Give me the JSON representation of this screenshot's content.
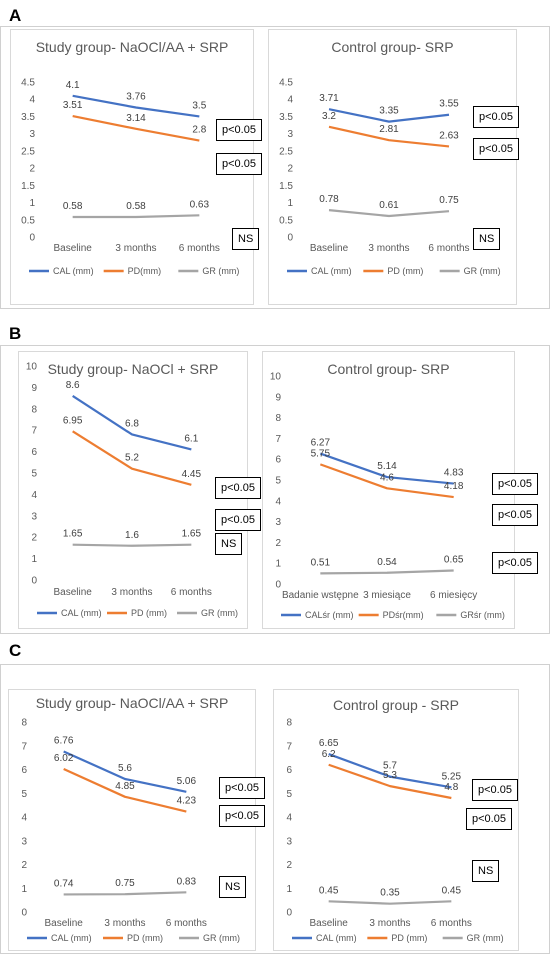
{
  "panels": [
    "A",
    "B",
    "C"
  ],
  "colors": {
    "cal": "#4472C4",
    "pd": "#ED7D31",
    "gr": "#A5A5A5"
  },
  "chart_data": [
    {
      "type": "line",
      "title": "Study group- NaOCl/AA + SRP",
      "categories": [
        "Baseline",
        "3 months",
        "6 months"
      ],
      "ylim": [
        0,
        4.5
      ],
      "yticks": [
        "0",
        "0.5",
        "1",
        "1.5",
        "2",
        "2.5",
        "3",
        "3.5",
        "4",
        "4.5"
      ],
      "series": [
        {
          "name": "CAL (mm)",
          "values": [
            4.1,
            3.76,
            3.5
          ],
          "labels": [
            "4.1",
            "3.76",
            "3.5"
          ]
        },
        {
          "name": "PD(mm)",
          "values": [
            3.51,
            3.14,
            2.8
          ],
          "labels": [
            "3.51",
            "3.14",
            "2.8"
          ]
        },
        {
          "name": "GR (mm)",
          "values": [
            0.58,
            0.58,
            0.63
          ],
          "labels": [
            "0.58",
            "0.58",
            "0.63"
          ]
        }
      ],
      "annotations": [
        "p<0.05",
        "p<0.05",
        "NS"
      ]
    },
    {
      "type": "line",
      "title": "Control group- SRP",
      "categories": [
        "Baseline",
        "3 months",
        "6 months"
      ],
      "ylim": [
        0,
        4.5
      ],
      "yticks": [
        "0",
        "0.5",
        "1",
        "1.5",
        "2",
        "2.5",
        "3",
        "3.5",
        "4",
        "4.5"
      ],
      "series": [
        {
          "name": "CAL (mm)",
          "values": [
            3.71,
            3.35,
            3.55
          ],
          "labels": [
            "3.71",
            "3.35",
            "3.55"
          ]
        },
        {
          "name": "PD (mm)",
          "values": [
            3.2,
            2.81,
            2.63
          ],
          "labels": [
            "3.2",
            "2.81",
            "2.63"
          ]
        },
        {
          "name": "GR (mm)",
          "values": [
            0.78,
            0.61,
            0.75
          ],
          "labels": [
            "0.78",
            "0.61",
            "0.75"
          ]
        }
      ],
      "annotations": [
        "p<0.05",
        "p<0.05",
        "NS"
      ]
    },
    {
      "type": "line",
      "title": "Study group- NaOCl + SRP",
      "categories": [
        "Baseline",
        "3 months",
        "6 months"
      ],
      "ylim": [
        0,
        10
      ],
      "yticks": [
        "0",
        "1",
        "2",
        "3",
        "4",
        "5",
        "6",
        "7",
        "8",
        "9",
        "10"
      ],
      "series": [
        {
          "name": "CAL (mm)",
          "values": [
            8.6,
            6.8,
            6.1
          ],
          "labels": [
            "8.6",
            "6.8",
            "6.1"
          ]
        },
        {
          "name": "PD (mm)",
          "values": [
            6.95,
            5.2,
            4.45
          ],
          "labels": [
            "6.95",
            "5.2",
            "4.45"
          ]
        },
        {
          "name": "GR (mm)",
          "values": [
            1.65,
            1.6,
            1.65
          ],
          "labels": [
            "1.65",
            "1.6",
            "1.65"
          ]
        }
      ],
      "annotations": [
        "p<0.05",
        "p<0.05",
        "NS"
      ]
    },
    {
      "type": "line",
      "title": "Control group- SRP",
      "categories": [
        "Badanie wstępne",
        "3 miesiące",
        "6 miesięcy"
      ],
      "ylim": [
        0,
        10
      ],
      "yticks": [
        "0",
        "1",
        "2",
        "3",
        "4",
        "5",
        "6",
        "7",
        "8",
        "9",
        "10"
      ],
      "series": [
        {
          "name": "CALśr (mm)",
          "values": [
            6.27,
            5.14,
            4.83
          ],
          "labels": [
            "6.27",
            "5.14",
            "4.83"
          ]
        },
        {
          "name": "PDśr(mm)",
          "values": [
            5.75,
            4.6,
            4.18
          ],
          "labels": [
            "5.75",
            "4.6",
            "4.18"
          ]
        },
        {
          "name": "GRśr (mm)",
          "values": [
            0.51,
            0.54,
            0.65
          ],
          "labels": [
            "0.51",
            "0.54",
            "0.65"
          ]
        }
      ],
      "annotations": [
        "p<0.05",
        "p<0.05",
        "p<0.05"
      ]
    },
    {
      "type": "line",
      "title": "Study group- NaOCl/AA + SRP",
      "categories": [
        "Baseline",
        "3 months",
        "6 months"
      ],
      "ylim": [
        0,
        8
      ],
      "yticks": [
        "0",
        "1",
        "2",
        "3",
        "4",
        "5",
        "6",
        "7",
        "8"
      ],
      "series": [
        {
          "name": "CAL  (mm)",
          "values": [
            6.76,
            5.6,
            5.06
          ],
          "labels": [
            "6.76",
            "5.6",
            "5.06"
          ]
        },
        {
          "name": "PD (mm)",
          "values": [
            6.02,
            4.85,
            4.23
          ],
          "labels": [
            "6.02",
            "4.85",
            "4.23"
          ]
        },
        {
          "name": "GR (mm)",
          "values": [
            0.74,
            0.75,
            0.83
          ],
          "labels": [
            "0.74",
            "0.75",
            "0.83"
          ]
        }
      ],
      "annotations": [
        "p<0.05",
        "p<0.05",
        "NS"
      ]
    },
    {
      "type": "line",
      "title": "Control group - SRP",
      "categories": [
        "Baseline",
        "3 months",
        "6 months"
      ],
      "ylim": [
        0,
        8
      ],
      "yticks": [
        "0",
        "1",
        "2",
        "3",
        "4",
        "5",
        "6",
        "7",
        "8"
      ],
      "series": [
        {
          "name": "CAL (mm)",
          "values": [
            6.65,
            5.7,
            5.25
          ],
          "labels": [
            "6.65",
            "5.7",
            "5.25"
          ]
        },
        {
          "name": "PD (mm)",
          "values": [
            6.2,
            5.3,
            4.8
          ],
          "labels": [
            "6.2",
            "5.3",
            "4.8"
          ]
        },
        {
          "name": "GR (mm)",
          "values": [
            0.45,
            0.35,
            0.45
          ],
          "labels": [
            "0.45",
            "0.35",
            "0.45"
          ]
        }
      ],
      "annotations": [
        "p<0.05",
        "p<0.05",
        "NS"
      ]
    }
  ]
}
